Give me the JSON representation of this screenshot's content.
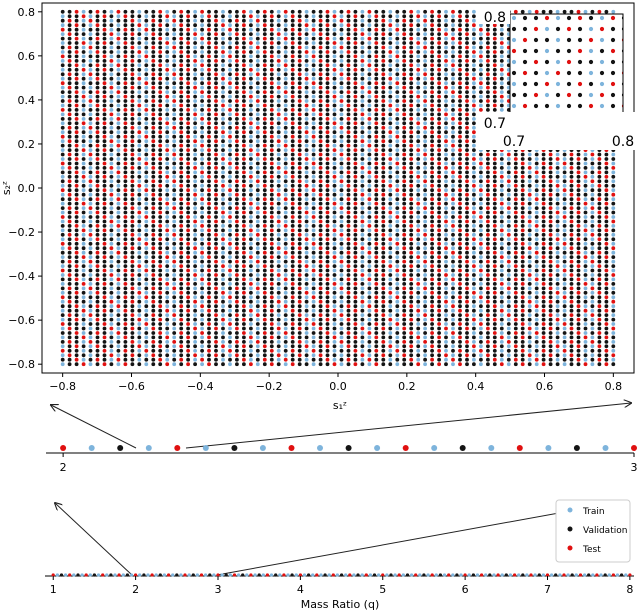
{
  "chart_data": [
    {
      "type": "scatter",
      "panel": "main",
      "xlabel": "s₁ᶻ",
      "ylabel": "s₂ᶻ",
      "xlim": [
        -0.86,
        0.86
      ],
      "ylim": [
        -0.84,
        0.84
      ],
      "xticks": [
        -0.8,
        -0.6,
        -0.4,
        -0.2,
        0.0,
        0.2,
        0.4,
        0.6,
        0.8
      ],
      "xtick_labels": [
        "−0.8",
        "−0.6",
        "−0.4",
        "−0.2",
        "0.0",
        "0.2",
        "0.4",
        "0.6",
        "0.8"
      ],
      "yticks": [
        0.8,
        0.6,
        0.4,
        0.2,
        0.0,
        -0.2,
        -0.4,
        -0.6,
        -0.8
      ],
      "ytick_labels": [
        "0.8",
        "0.6",
        "0.4",
        "0.2",
        "0.0",
        "−0.2",
        "−0.4",
        "−0.6",
        "−0.8"
      ],
      "grid": false,
      "data_range": [
        -0.8,
        0.8
      ],
      "grid_points_per_axis": 80,
      "series": [
        {
          "name": "Train",
          "color": "#7eb4dc"
        },
        {
          "name": "Validation",
          "color": "#141414"
        },
        {
          "name": "Test",
          "color": "#e01010"
        }
      ]
    },
    {
      "type": "scatter",
      "panel": "inset",
      "xlim": [
        0.7,
        0.8
      ],
      "ylim": [
        0.7,
        0.8
      ],
      "corner_labels": {
        "x_min": "0.7",
        "x_max": "0.8",
        "y_min": "0.7",
        "y_max": "0.8"
      },
      "grid": false
    },
    {
      "type": "scatter",
      "panel": "zoom-strip",
      "xlim": [
        1.97,
        3.0
      ],
      "xticks": [
        2,
        3
      ],
      "xtick_labels": [
        "2",
        "3"
      ],
      "x": [
        2.0,
        2.05,
        2.1,
        2.15,
        2.2,
        2.25,
        2.3,
        2.35,
        2.4,
        2.45,
        2.5,
        2.55,
        2.6,
        2.65,
        2.7,
        2.75,
        2.8,
        2.85,
        2.9,
        2.95,
        3.0
      ],
      "labels": [
        "Test",
        "Train",
        "Validation",
        "Train",
        "Test",
        "Train",
        "Validation",
        "Train",
        "Test",
        "Train",
        "Validation",
        "Train",
        "Test",
        "Train",
        "Validation",
        "Train",
        "Test",
        "Train",
        "Validation",
        "Train",
        "Test"
      ]
    },
    {
      "type": "scatter",
      "panel": "mass-ratio",
      "xlabel": "Mass Ratio (q)",
      "xlim": [
        0.9,
        8.05
      ],
      "xticks": [
        1,
        2,
        3,
        4,
        5,
        6,
        7,
        8
      ],
      "xtick_labels": [
        "1",
        "2",
        "3",
        "4",
        "5",
        "6",
        "7",
        "8"
      ],
      "x_range": [
        1,
        8
      ],
      "step": 0.05,
      "legend": {
        "placement": "upper-right",
        "entries": [
          "Train",
          "Validation",
          "Test"
        ]
      }
    }
  ],
  "colors": {
    "train": "#7eb4dc",
    "validation": "#141414",
    "test": "#e01010",
    "axis": "#000000"
  }
}
